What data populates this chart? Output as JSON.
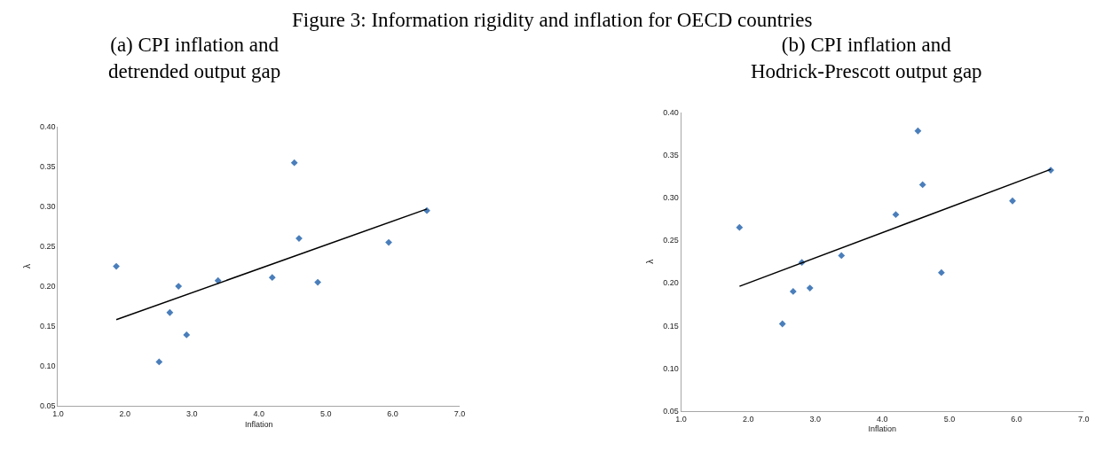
{
  "chart_data": [
    {
      "type": "scatter",
      "title": "(a) CPI inflation and\ndetrended output gap",
      "xlabel": "Inflation",
      "ylabel": "λ",
      "annotations": [
        "Figure 3: Information rigidity and inflation for OECD countries"
      ],
      "xlim": [
        1.0,
        7.0
      ],
      "xticks": [
        {
          "value": 1,
          "label": "1.0"
        },
        {
          "value": 2,
          "label": "2.0"
        },
        {
          "value": 3,
          "label": "3.0"
        },
        {
          "value": 4,
          "label": "4.0"
        },
        {
          "value": 5,
          "label": "5.0"
        },
        {
          "value": 6,
          "label": "6.0"
        },
        {
          "value": 7,
          "label": "7.0"
        }
      ],
      "ylim": [
        0.05,
        0.4
      ],
      "yticks": [
        0.05,
        {
          "value": 0.1,
          "label": "0.10"
        },
        0.15,
        {
          "value": 0.2,
          "label": "0.20"
        },
        0.25,
        {
          "value": 0.3,
          "label": "0.30"
        },
        0.35,
        {
          "value": 0.4,
          "label": "0.40"
        }
      ],
      "grid": false,
      "series": [
        {
          "marker": "diamond",
          "color": "#4a7ebb",
          "x": [
            1.87,
            2.51,
            2.67,
            2.8,
            2.92,
            3.39,
            4.2,
            4.53,
            4.6,
            4.88,
            5.94,
            6.51
          ],
          "values": [
            0.225,
            0.105,
            0.167,
            0.2,
            0.139,
            0.207,
            0.211,
            0.355,
            0.26,
            0.205,
            0.255,
            0.295
          ]
        },
        {
          "type": "line",
          "color": "#000000",
          "x": [
            1.87,
            6.51
          ],
          "values": [
            0.158,
            0.297
          ]
        }
      ]
    },
    {
      "type": "scatter",
      "title": "(b) CPI inflation and\nHodrick-Prescott output gap",
      "xlabel": "Inflation",
      "ylabel": "λ",
      "xlim": [
        1.0,
        7.0
      ],
      "xticks": [
        {
          "value": 1,
          "label": "1.0"
        },
        {
          "value": 2,
          "label": "2.0"
        },
        {
          "value": 3,
          "label": "3.0"
        },
        {
          "value": 4,
          "label": "4.0"
        },
        {
          "value": 5,
          "label": "5.0"
        },
        {
          "value": 6,
          "label": "6.0"
        },
        {
          "value": 7,
          "label": "7.0"
        }
      ],
      "ylim": [
        0.05,
        0.4
      ],
      "yticks": [
        0.05,
        {
          "value": 0.1,
          "label": "0.10"
        },
        0.15,
        {
          "value": 0.2,
          "label": "0.20"
        },
        0.25,
        {
          "value": 0.3,
          "label": "0.30"
        },
        0.35,
        {
          "value": 0.4,
          "label": "0.40"
        }
      ],
      "grid": false,
      "series": [
        {
          "marker": "diamond",
          "color": "#4a7ebb",
          "x": [
            1.87,
            2.51,
            2.67,
            2.8,
            2.92,
            3.39,
            4.2,
            4.53,
            4.6,
            4.88,
            5.94,
            6.51
          ],
          "values": [
            0.265,
            0.152,
            0.19,
            0.224,
            0.194,
            0.232,
            0.28,
            0.378,
            0.315,
            0.212,
            0.296,
            0.332
          ]
        },
        {
          "type": "line",
          "color": "#000000",
          "x": [
            1.87,
            6.51
          ],
          "values": [
            0.196,
            0.333
          ]
        }
      ]
    }
  ]
}
